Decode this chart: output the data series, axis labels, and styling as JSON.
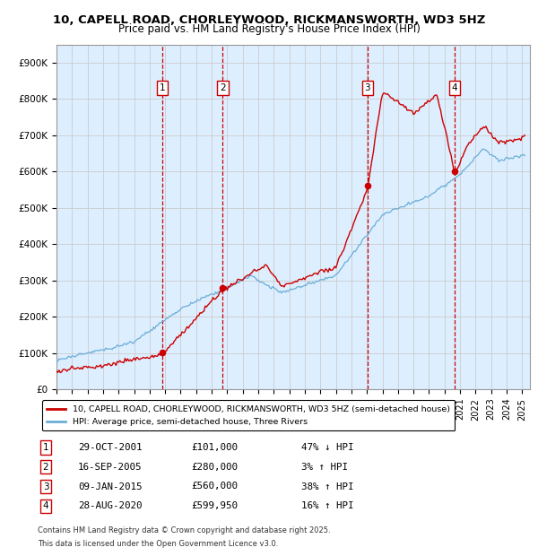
{
  "title": "10, CAPELL ROAD, CHORLEYWOOD, RICKMANSWORTH, WD3 5HZ",
  "subtitle": "Price paid vs. HM Land Registry's House Price Index (HPI)",
  "ylim": [
    0,
    950000
  ],
  "yticks": [
    0,
    100000,
    200000,
    300000,
    400000,
    500000,
    600000,
    700000,
    800000,
    900000
  ],
  "ytick_labels": [
    "£0",
    "£100K",
    "£200K",
    "£300K",
    "£400K",
    "£500K",
    "£600K",
    "£700K",
    "£800K",
    "£900K"
  ],
  "xlim_start": 1995.0,
  "xlim_end": 2025.5,
  "transactions": [
    {
      "num": 1,
      "date": "29-OCT-2001",
      "price": 101000,
      "pct": "47%",
      "dir": "↓",
      "year": 2001.83
    },
    {
      "num": 2,
      "date": "16-SEP-2005",
      "price": 280000,
      "pct": "3%",
      "dir": "↑",
      "year": 2005.71
    },
    {
      "num": 3,
      "date": "09-JAN-2015",
      "price": 560000,
      "pct": "38%",
      "dir": "↑",
      "year": 2015.03
    },
    {
      "num": 4,
      "date": "28-AUG-2020",
      "price": 599950,
      "pct": "16%",
      "dir": "↑",
      "year": 2020.66
    }
  ],
  "red_line_color": "#cc0000",
  "blue_line_color": "#6baed6",
  "dot_color": "#cc0000",
  "vline_color": "#cc0000",
  "grid_color": "#cccccc",
  "bg_color": "#ddeeff",
  "legend_label_red": "10, CAPELL ROAD, CHORLEYWOOD, RICKMANSWORTH, WD3 5HZ (semi-detached house)",
  "legend_label_blue": "HPI: Average price, semi-detached house, Three Rivers",
  "footer1": "Contains HM Land Registry data © Crown copyright and database right 2025.",
  "footer2": "This data is licensed under the Open Government Licence v3.0."
}
